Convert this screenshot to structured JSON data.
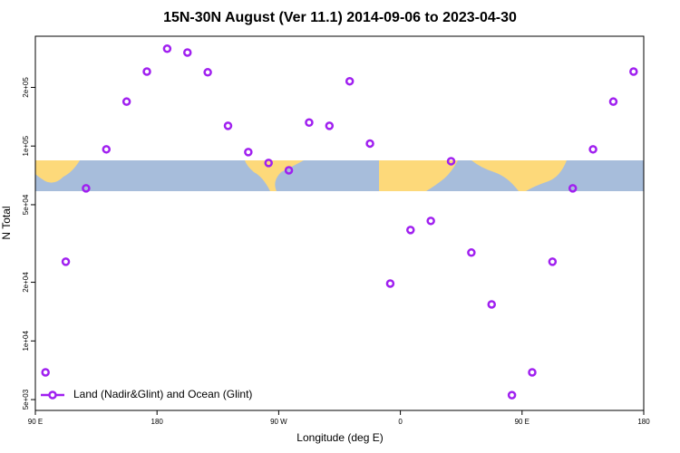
{
  "chart_data": {
    "type": "scatter",
    "title": "15N-30N August (Ver 11.1)   2014-09-06 to 2023-04-30",
    "xlabel": "Longitude (deg E)",
    "ylabel": "N Total",
    "xlim": [
      90,
      540
    ],
    "xticks": [
      {
        "value": 90,
        "label": "90 E"
      },
      180,
      {
        "value": 270,
        "label": "90 W"
      },
      {
        "value": 360,
        "label": "0"
      },
      {
        "value": 450,
        "label": "90 E"
      },
      {
        "value": 540,
        "label": "180"
      }
    ],
    "ylim": [
      4400,
      366000
    ],
    "log_y": true,
    "yticks": [
      {
        "value": 5000,
        "label": "5e+03"
      },
      {
        "value": 10000,
        "label": "1e+04"
      },
      {
        "value": 20000,
        "label": "2e+04"
      },
      {
        "value": 50000,
        "label": "5e+04"
      },
      {
        "value": 100000,
        "label": "1e+05"
      },
      {
        "value": 200000,
        "label": "2e+05"
      }
    ],
    "legend": "bottom-left",
    "series": [
      {
        "name": "Land (Nadir&Glint) and Ocean (Glint)",
        "color": "#a020f0",
        "x": [
          97.5,
          112.5,
          127.5,
          142.5,
          157.5,
          172.5,
          187.5,
          202.5,
          217.5,
          232.5,
          247.5,
          262.5,
          277.5,
          292.5,
          307.5,
          322.5,
          337.5,
          352.5,
          367.5,
          382.5,
          397.5,
          412.5,
          427.5,
          442.5,
          457.5,
          472.5,
          487.5,
          502.5,
          517.5,
          532.5
        ],
        "values": [
          6900,
          25500,
          60700,
          96200,
          169000,
          241000,
          316000,
          302000,
          239000,
          127000,
          93100,
          81900,
          75100,
          132000,
          127000,
          215000,
          103000,
          19700,
          37100,
          41300,
          83600,
          28400,
          15400,
          5270,
          6900,
          25500,
          60700,
          96200,
          169000,
          241000
        ]
      }
    ]
  }
}
